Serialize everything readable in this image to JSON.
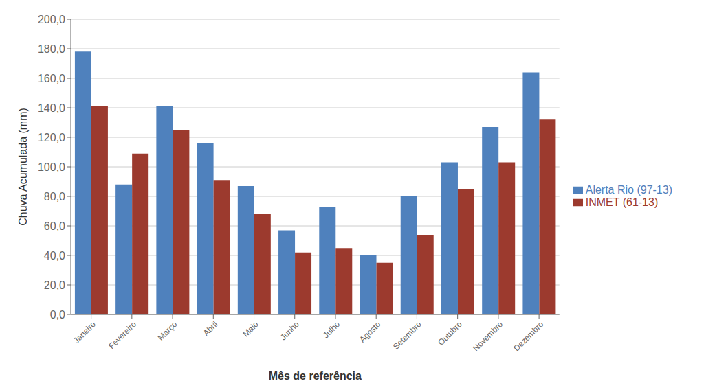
{
  "chart_data": {
    "type": "bar",
    "xlabel": "Mês de referência",
    "ylabel": "Chuva Acumulada (mm)",
    "categories": [
      "Janeiro",
      "Fevereiro",
      "Março",
      "Abril",
      "Maio",
      "Junho",
      "Julho",
      "Agosto",
      "Setembro",
      "Outubro",
      "Novembro",
      "Dezembro"
    ],
    "series": [
      {
        "name": "Alerta Rio (97-13)",
        "color": "#4F81BD",
        "values": [
          178,
          88,
          141,
          116,
          87,
          57,
          73,
          40,
          80,
          103,
          127,
          164
        ]
      },
      {
        "name": "INMET (61-13)",
        "color": "#9C3A2E",
        "values": [
          141,
          109,
          125,
          91,
          68,
          42,
          45,
          35,
          54,
          85,
          103,
          132
        ]
      }
    ],
    "ylim": [
      0,
      200
    ],
    "yticks": [
      {
        "value": 0,
        "label": "0,0"
      },
      {
        "value": 20,
        "label": "20,0"
      },
      {
        "value": 40,
        "label": "40,0"
      },
      {
        "value": 60,
        "label": "60,0"
      },
      {
        "value": 80,
        "label": "80,0"
      },
      {
        "value": 100,
        "label": "100,0"
      },
      {
        "value": 120,
        "label": "120,0"
      },
      {
        "value": 140,
        "label": "140,0"
      },
      {
        "value": 160,
        "label": "160,0"
      },
      {
        "value": 180,
        "label": "180,0"
      },
      {
        "value": 200,
        "label": "200,0"
      }
    ],
    "grid": true,
    "legend": "right"
  }
}
